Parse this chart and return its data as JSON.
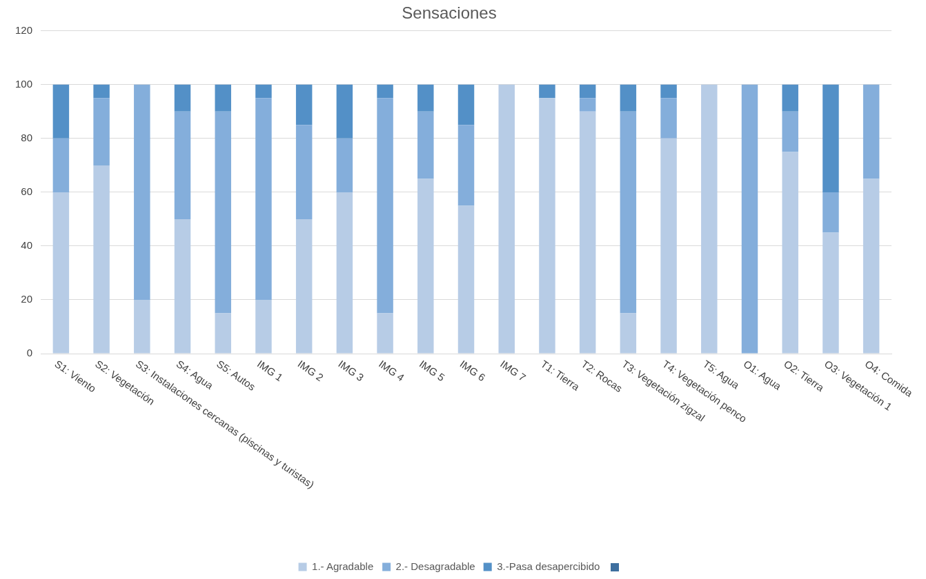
{
  "chart_data": {
    "type": "bar",
    "title": "Sensaciones",
    "stacked": true,
    "categories": [
      "S1: Viento",
      "S2: Vegetación",
      "S3: Instalaciones cercanas (piscinas y turistas)",
      "S4: Agua",
      "S5: Autos",
      "IMG 1",
      "IMG 2",
      "IMG 3",
      "IMG 4",
      "IMG 5",
      "IMG 6",
      "IMG 7",
      "T1: Tierra",
      "T2: Rocas",
      "T3: Vegetación zigzal",
      "T4: Vegetación penco",
      "T5: Agua",
      "O1: Agua",
      "O2: Tierra",
      "O3: Vegetación 1",
      "O4: Comida"
    ],
    "series": [
      {
        "name": "1.- Agradable",
        "color": "#b7cce6",
        "values": [
          60,
          70,
          20,
          50,
          15,
          20,
          50,
          60,
          15,
          65,
          55,
          100,
          95,
          90,
          15,
          80,
          100,
          0,
          75,
          45,
          65
        ]
      },
      {
        "name": "2.- Desagradable",
        "color": "#84aedb",
        "values": [
          20,
          25,
          80,
          40,
          75,
          75,
          35,
          20,
          80,
          25,
          30,
          0,
          0,
          5,
          75,
          15,
          0,
          100,
          15,
          15,
          35
        ]
      },
      {
        "name": "3.-Pasa desapercibido",
        "color": "#5390c7",
        "values": [
          20,
          5,
          0,
          10,
          10,
          5,
          15,
          20,
          5,
          10,
          15,
          0,
          5,
          5,
          10,
          5,
          0,
          0,
          10,
          40,
          0
        ]
      }
    ],
    "ylim": [
      0,
      120
    ],
    "yticks": [
      0,
      20,
      40,
      60,
      80,
      100,
      120
    ],
    "grid": "y",
    "legend": "bottom"
  }
}
